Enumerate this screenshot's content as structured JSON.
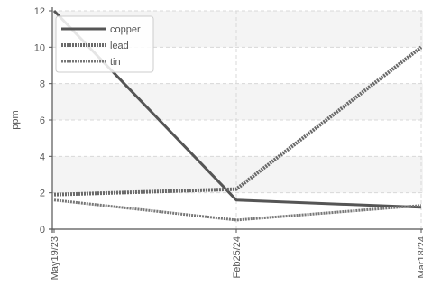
{
  "chart_data": {
    "type": "line",
    "ylabel": "ppm",
    "xlabel": "",
    "title": "",
    "categories": [
      "May19/23",
      "Feb25/24",
      "Mar18/24"
    ],
    "ylim": [
      0,
      12
    ],
    "yticks": [
      "0",
      "2",
      "4",
      "6",
      "8",
      "10",
      "12"
    ],
    "grid": true,
    "legend_position": "top-left",
    "series": [
      {
        "name": "copper",
        "values": [
          12.0,
          1.6,
          1.2
        ],
        "color": "#555555",
        "style": "solid"
      },
      {
        "name": "lead",
        "values": [
          1.9,
          2.2,
          10.0
        ],
        "color": "#666666",
        "style": "dotted"
      },
      {
        "name": "tin",
        "values": [
          1.6,
          0.5,
          1.3
        ],
        "color": "#777777",
        "style": "dotted"
      }
    ]
  }
}
